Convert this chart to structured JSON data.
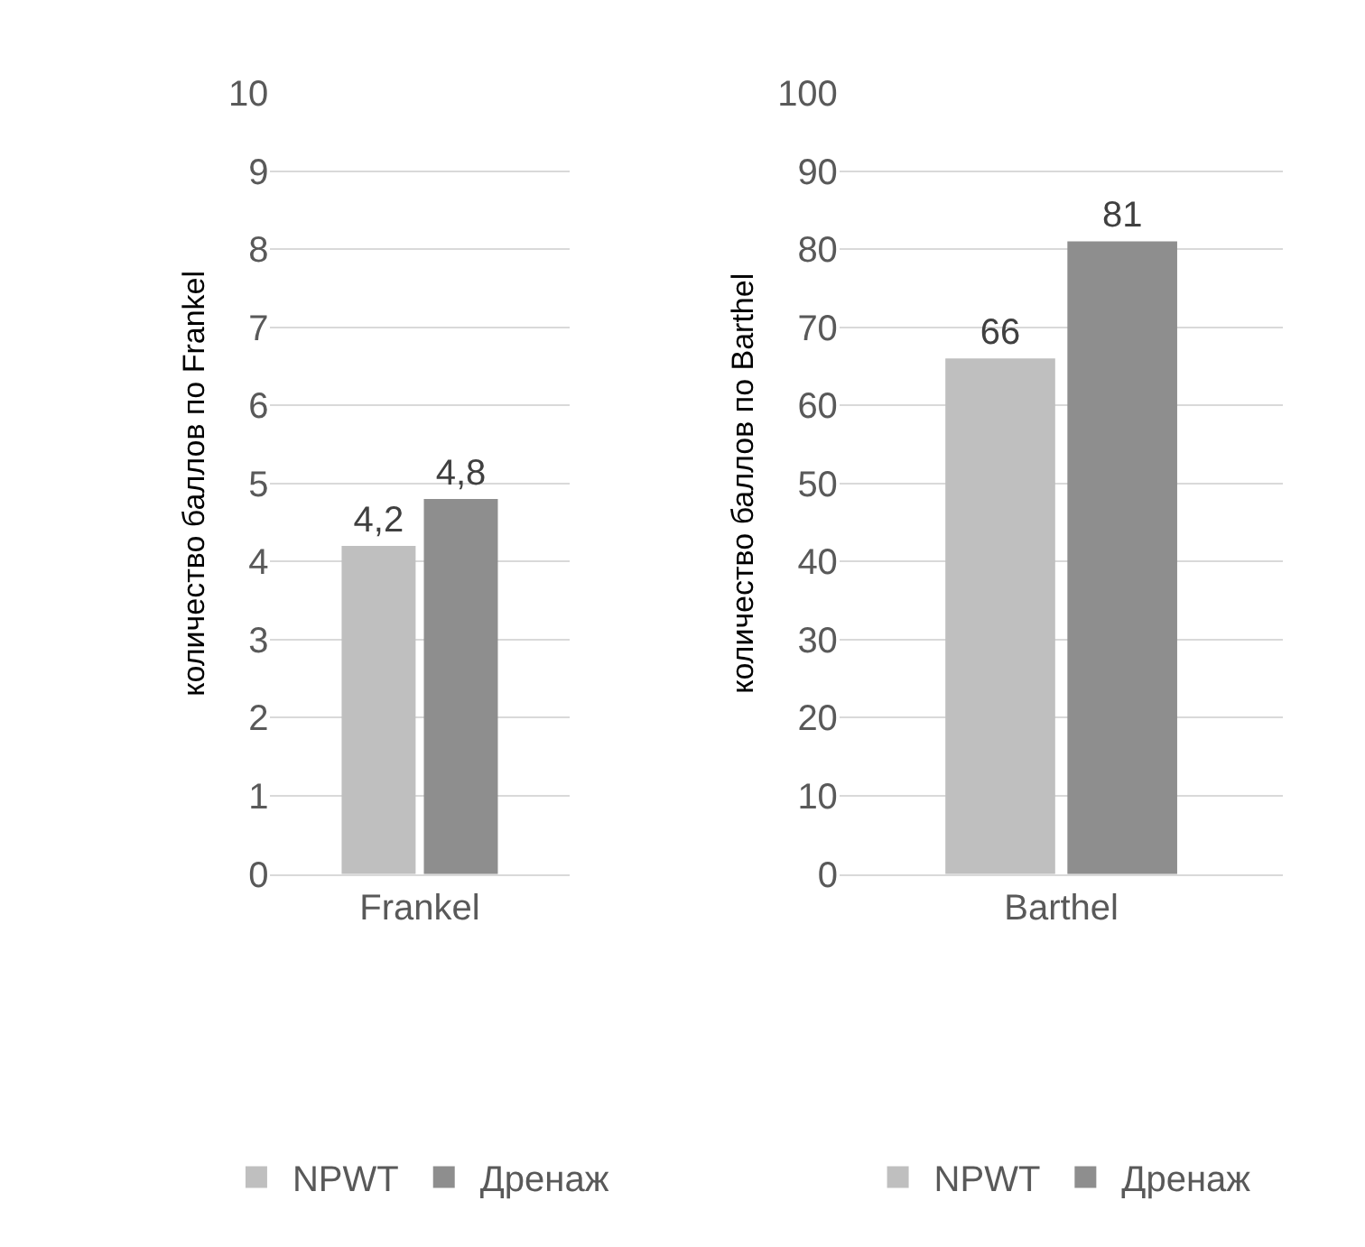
{
  "chart_data": [
    {
      "type": "bar",
      "categories": [
        "Frankel"
      ],
      "ylabel": "количество баллов по Frankel",
      "ylim": [
        0,
        10
      ],
      "yticks": [
        0,
        1,
        2,
        3,
        4,
        5,
        6,
        7,
        8,
        9,
        10
      ],
      "grid": "y",
      "legend": "bottom",
      "series": [
        {
          "name": "NPWT",
          "color": "#bfbfbf",
          "values": [
            4.2
          ],
          "value_labels": [
            "4,2"
          ]
        },
        {
          "name": "Дренаж",
          "color": "#8e8e8e",
          "values": [
            4.8
          ],
          "value_labels": [
            "4,8"
          ]
        }
      ]
    },
    {
      "type": "bar",
      "categories": [
        "Barthel"
      ],
      "ylabel": "количество баллов по Barthel",
      "ylim": [
        0,
        100
      ],
      "yticks": [
        0,
        10,
        20,
        30,
        40,
        50,
        60,
        70,
        80,
        90,
        100
      ],
      "grid": "y",
      "legend": "bottom",
      "series": [
        {
          "name": "NPWT",
          "color": "#bfbfbf",
          "values": [
            66
          ],
          "value_labels": [
            "66"
          ]
        },
        {
          "name": "Дренаж",
          "color": "#8e8e8e",
          "values": [
            81
          ],
          "value_labels": [
            "81"
          ]
        }
      ]
    }
  ]
}
